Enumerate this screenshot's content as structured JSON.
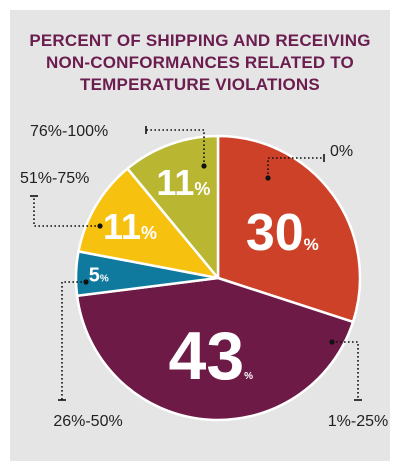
{
  "chart_data": {
    "type": "pie",
    "title_lines": [
      "PERCENT OF SHIPPING AND RECEIVING",
      "NON-CONFORMANCES RELATED TO",
      "TEMPERATURE VIOLATIONS"
    ],
    "slices": [
      {
        "label": "0%",
        "value": 30,
        "value_label": "30",
        "color": "#cc4127"
      },
      {
        "label": "1%-25%",
        "value": 43,
        "value_label": "43",
        "color": "#6e1a47"
      },
      {
        "label": "26%-50%",
        "value": 5,
        "value_label": "5",
        "color": "#0f7a9e"
      },
      {
        "label": "51%-75%",
        "value": 11,
        "value_label": "11",
        "color": "#f7c110"
      },
      {
        "label": "76%-100%",
        "value": 11,
        "value_label": "11",
        "color": "#b9b632"
      }
    ],
    "percent_sign": "%"
  }
}
